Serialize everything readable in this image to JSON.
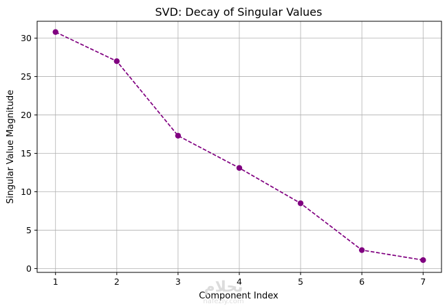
{
  "chart_data": {
    "type": "line",
    "title": "SVD: Decay of Singular Values",
    "xlabel": "Component Index",
    "ylabel": "Singular Value Magnitude",
    "x": [
      1,
      2,
      3,
      4,
      5,
      6,
      7
    ],
    "series": [
      {
        "values": [
          30.8,
          27.0,
          17.3,
          13.1,
          8.5,
          2.4,
          1.1
        ]
      }
    ],
    "xticks": [
      1,
      2,
      3,
      4,
      5,
      6,
      7
    ],
    "yticks": [
      0,
      5,
      10,
      15,
      20,
      25,
      30
    ],
    "xlim": [
      0.7,
      7.3
    ],
    "ylim": [
      -0.5,
      32.2
    ],
    "grid": true,
    "line_style": "dashed",
    "marker": "circle",
    "color": "#800080"
  },
  "watermark": {
    "logo_text": "نحلام",
    "site": "nafezly.com"
  }
}
